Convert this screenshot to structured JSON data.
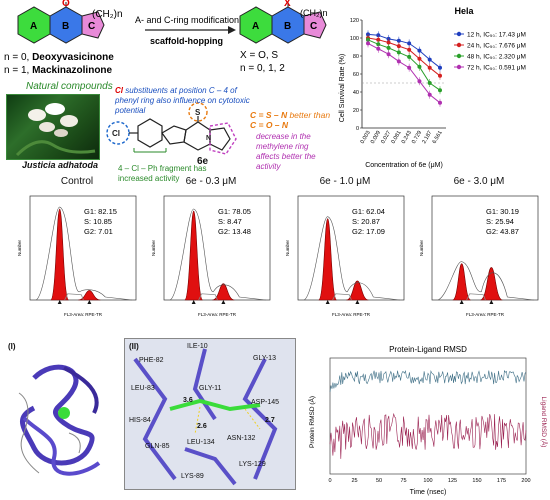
{
  "scheme": {
    "arrow_top_text": "A- and C-ring modification",
    "arrow_bottom_text": "scaffold-hopping",
    "left_atom": "O",
    "right_atom": "X",
    "chain_label": "(CH₂)n",
    "ring_a": "A",
    "ring_b": "B",
    "ring_c": "C",
    "left_n0": "n = 0, ",
    "left_n0_name": "Deoxyvasicinone",
    "left_n1": "n = 1, ",
    "left_n1_name": "Mackinazolinone",
    "right_x": "X = O, S",
    "right_n": "n = 0, 1, 2",
    "natural_compounds": "Natural compounds",
    "plant_name": "Justicia adhatoda",
    "compound_label": "6e",
    "sar_cl_prefix": "Cl",
    "sar_cl_text": " substituents at position C – 4 of phenyl ring also influence on cytotoxic potential",
    "sar_cs_text": "C = S – N",
    "sar_cs_mid": " better than ",
    "sar_co_text": "C = O – N",
    "sar_methylene": "decrease in the methylene ring affects better the activity",
    "sar_4cl": "4 – Cl – Ph fragment has increased activity"
  },
  "chart_data": {
    "type": "line",
    "title": "Hela",
    "xlabel": "Concentration of 6e (μM)",
    "ylabel": "Cell Survival Rate (%)",
    "categories": [
      "0.003",
      "0.009",
      "0.027",
      "0.081",
      "0.243",
      "0.729",
      "2.187",
      "6.561"
    ],
    "ylim": [
      0,
      120
    ],
    "yticks": [
      0,
      20,
      40,
      60,
      80,
      100,
      120
    ],
    "series": [
      {
        "name": "12 h, IC₅₀: 17.43 μM",
        "color": "#1f3fbf",
        "values": [
          104,
          103,
          99,
          97,
          94,
          86,
          76,
          67
        ]
      },
      {
        "name": "24 h, IC₅₀: 7.676 μM",
        "color": "#d42020",
        "values": [
          100,
          98,
          95,
          91,
          87,
          77,
          67,
          58
        ]
      },
      {
        "name": "48 h, IC₅₀: 2.320 μM",
        "color": "#2aa02a",
        "values": [
          98,
          93,
          89,
          84,
          79,
          68,
          50,
          42
        ]
      },
      {
        "name": "72 h, IC₅₀: 0.591 μM",
        "color": "#b030b0",
        "values": [
          94,
          88,
          82,
          74,
          67,
          52,
          37,
          28
        ]
      }
    ]
  },
  "flow_panels": [
    {
      "title": "Control",
      "g1": "G1: 82.15",
      "s": "S: 10.85",
      "g2": "G2: 7.01",
      "g1_peak": 0.95,
      "g2_peak": 0.1
    },
    {
      "title": "6e - 0.3 μM",
      "g1": "G1: 78.05",
      "s": "S: 8.47",
      "g2": "G2: 13.48",
      "g1_peak": 0.93,
      "g2_peak": 0.17
    },
    {
      "title": "6e - 1.0 μM",
      "g1": "G1: 62.04",
      "s": "S: 20.87",
      "g2": "G2: 17.09",
      "g1_peak": 0.85,
      "g2_peak": 0.2
    },
    {
      "title": "6e - 3.0 μM",
      "g1": "G1: 30.19",
      "s": "S: 25.94",
      "g2": "G2: 43.87",
      "g1_peak": 0.38,
      "g2_peak": 0.34
    }
  ],
  "flow_axis": {
    "xlabel": "FL3-Area: RPE-TR",
    "ylabel": "Number"
  },
  "docking": {
    "label_i": "(I)",
    "label_ii": "(II)",
    "residues": [
      "PHE-82",
      "ILE-10",
      "GLY-13",
      "LEU-83",
      "GLY-11",
      "ASP-145",
      "HIS-84",
      "GLN-85",
      "LEU-134",
      "ASN-132",
      "LYS-89",
      "LYS-129"
    ],
    "distances": [
      "3.6",
      "2.6",
      "2.7"
    ]
  },
  "rmsd_chart": {
    "title": "Protein-Ligand RMSD",
    "xlabel": "Time (nsec)",
    "ylabel_left": "Protein RMSD (Å)",
    "ylabel_right": "Ligand RMSD (Å)",
    "x_ticks": [
      "0",
      "25",
      "50",
      "75",
      "100",
      "125",
      "150",
      "175",
      "200"
    ],
    "protein_color": "#3f6f86",
    "ligand_color": "#9a2050"
  }
}
